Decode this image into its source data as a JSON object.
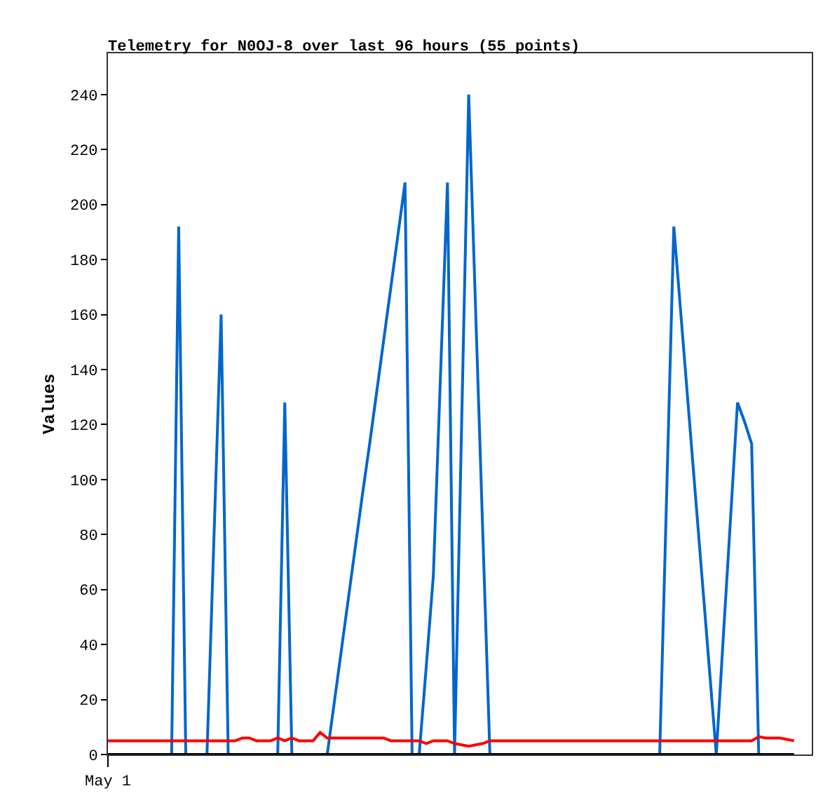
{
  "chart_data": {
    "type": "line",
    "title": "Telemetry for N0OJ-8 over last 96 hours (55 points)",
    "ylabel": "Values",
    "categories": [
      "May 1",
      null,
      null,
      null,
      null,
      null,
      null,
      null,
      null,
      null,
      null,
      null,
      null,
      null,
      null,
      null,
      null,
      null,
      null,
      null,
      null,
      null,
      null,
      null,
      null,
      null,
      null,
      null,
      null,
      null,
      null,
      null,
      null,
      null,
      null,
      null,
      null,
      null,
      null,
      null,
      null,
      null,
      null,
      null,
      null,
      null,
      null,
      null,
      null,
      null,
      null,
      null,
      null,
      null,
      null,
      null,
      null,
      null,
      null,
      null,
      null,
      null,
      null,
      null,
      null,
      null,
      null,
      null,
      null,
      null,
      null,
      null,
      null,
      null,
      null,
      null,
      null,
      null,
      null,
      null,
      null,
      null,
      null,
      null,
      null,
      null,
      null,
      null,
      null,
      null,
      null,
      null,
      null,
      null,
      null,
      null,
      null,
      null
    ],
    "ylim": [
      0,
      255
    ],
    "yticks": [
      0,
      20,
      40,
      60,
      80,
      100,
      120,
      140,
      160,
      180,
      200,
      220,
      240
    ],
    "grid": false,
    "marker": "none",
    "line_style": "solid",
    "series": [
      {
        "color": "#0066cc",
        "values": [
          null,
          null,
          null,
          null,
          null,
          null,
          null,
          0,
          0,
          0,
          192,
          0,
          0,
          0,
          0,
          80,
          160,
          0,
          0,
          0,
          0,
          0,
          0,
          0,
          0,
          128,
          0,
          0,
          0,
          0,
          0,
          0,
          19,
          38,
          57,
          76,
          95,
          113,
          132,
          151,
          170,
          189,
          208,
          0,
          0,
          32,
          65,
          137,
          208,
          0,
          120,
          240,
          160,
          80,
          0,
          0,
          0,
          0,
          0,
          0,
          0,
          0,
          0,
          0,
          0,
          0,
          0,
          0,
          0,
          0,
          0,
          0,
          0,
          0,
          0,
          0,
          0,
          0,
          0,
          96,
          192,
          160,
          128,
          96,
          64,
          32,
          0,
          43,
          85,
          128,
          121,
          113,
          0,
          0,
          0,
          null,
          null,
          null
        ]
      },
      {
        "color": "#ff0000",
        "values": [
          5,
          5,
          5,
          5,
          5,
          5,
          5,
          5,
          5,
          5,
          5,
          5,
          5,
          5,
          5,
          5,
          5,
          5,
          5,
          6,
          6,
          5,
          5,
          5,
          6,
          5,
          6,
          5,
          5,
          5,
          8,
          6,
          6,
          6,
          6,
          6,
          6,
          6,
          6,
          6,
          5,
          5,
          5,
          5,
          5,
          4,
          5,
          5,
          5,
          4,
          3.5,
          3,
          3.5,
          4,
          5,
          5,
          5,
          5,
          5,
          5,
          5,
          5,
          5,
          5,
          5,
          5,
          5,
          5,
          5,
          5,
          5,
          5,
          5,
          5,
          5,
          5,
          5,
          5,
          5,
          5,
          5,
          5,
          5,
          5,
          5,
          5,
          5,
          5,
          5,
          5,
          5,
          5,
          6.5,
          6,
          6,
          6,
          5.5,
          5
        ]
      },
      {
        "color": "#000000",
        "values": [
          0,
          0,
          0,
          0,
          0,
          0,
          0,
          0,
          0,
          0,
          0,
          0,
          0,
          0,
          0,
          0,
          0,
          0,
          0,
          0,
          0,
          0,
          0,
          0,
          0,
          0,
          0,
          0,
          0,
          0,
          0,
          0,
          0,
          0,
          0,
          0,
          0,
          0,
          0,
          0,
          0,
          0,
          0,
          0,
          0,
          0,
          0,
          0,
          0,
          0,
          0,
          0,
          0,
          0,
          0,
          0,
          0,
          0,
          0,
          0,
          0,
          0,
          0,
          0,
          0,
          0,
          0,
          0,
          0,
          0,
          0,
          0,
          0,
          0,
          0,
          0,
          0,
          0,
          0,
          0,
          0,
          0,
          0,
          0,
          0,
          0,
          0,
          0,
          0,
          0,
          0,
          0,
          0,
          0,
          0,
          0,
          0,
          0
        ]
      }
    ]
  }
}
